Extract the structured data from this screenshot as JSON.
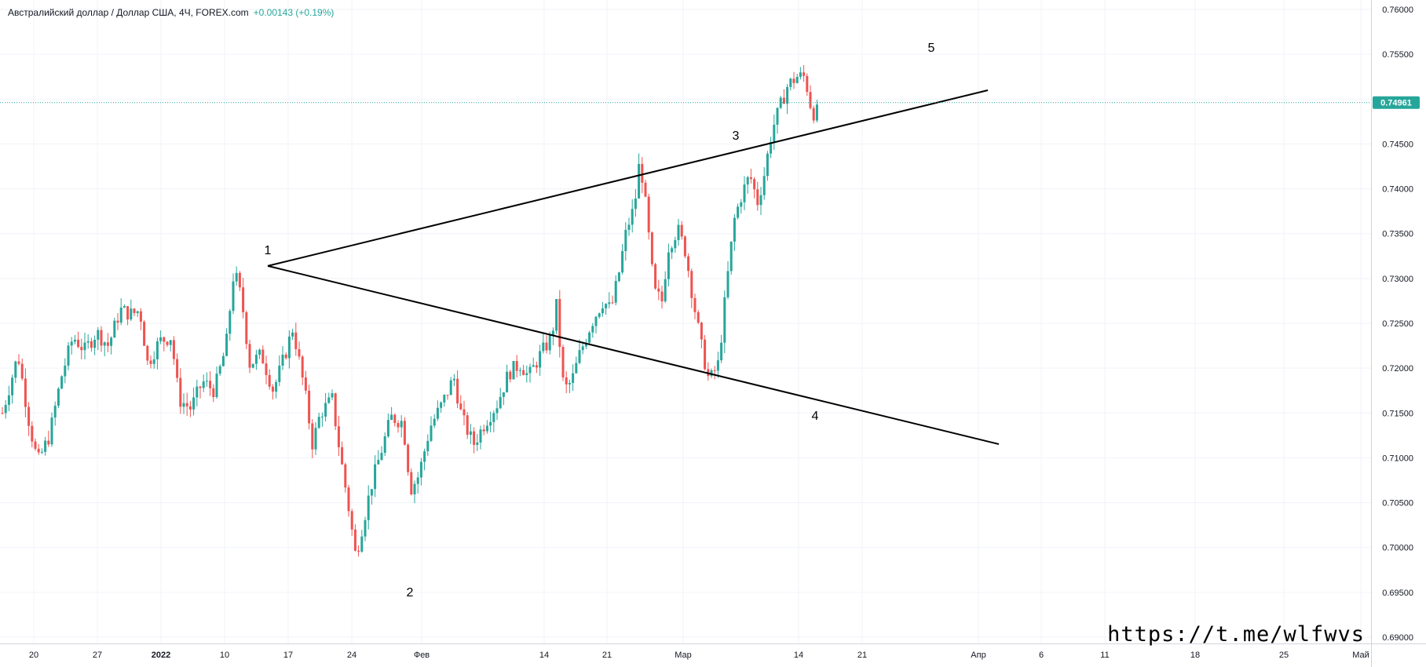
{
  "legend": {
    "symbol": "Австралийский доллар / Доллар США, 4Ч, FOREX.com",
    "change": "+0.00143 (+0.19%)"
  },
  "watermark": "https://t.me/wlfwvs",
  "colors": {
    "up": "#26a69a",
    "down": "#ef5350",
    "grid": "#f0f3fa",
    "line": "#000000",
    "last_price": "#26a69a"
  },
  "chart_data": {
    "type": "candlestick",
    "title": "Австралийский доллар / Доллар США, 4Ч, FOREX.com",
    "ylim": [
      0.69,
      0.76
    ],
    "y_ticks": [
      "0.76000",
      "0.75500",
      "0.75000",
      "0.74500",
      "0.74000",
      "0.73500",
      "0.73000",
      "0.72500",
      "0.72000",
      "0.71500",
      "0.71000",
      "0.70500",
      "0.70000",
      "0.69500",
      "0.69000"
    ],
    "x_ticks": [
      "20",
      "27",
      "2022",
      "10",
      "17",
      "24",
      "Фев",
      "14",
      "21",
      "Мар",
      "14",
      "21",
      "Апр",
      "6",
      "11",
      "18",
      "25",
      "Май"
    ],
    "x_tick_bold": [
      "2022"
    ],
    "last_price": 0.74961,
    "last_price_label": "0.74961",
    "close_path": [
      [
        0,
        0.715
      ],
      [
        20,
        0.7215
      ],
      [
        35,
        0.7135
      ],
      [
        45,
        0.7095
      ],
      [
        60,
        0.7125
      ],
      [
        75,
        0.719
      ],
      [
        90,
        0.7235
      ],
      [
        105,
        0.722
      ],
      [
        120,
        0.724
      ],
      [
        135,
        0.7225
      ],
      [
        150,
        0.7265
      ],
      [
        165,
        0.726
      ],
      [
        175,
        0.7265
      ],
      [
        185,
        0.7205
      ],
      [
        200,
        0.723
      ],
      [
        215,
        0.7235
      ],
      [
        225,
        0.7165
      ],
      [
        240,
        0.7155
      ],
      [
        255,
        0.7185
      ],
      [
        270,
        0.7175
      ],
      [
        285,
        0.7225
      ],
      [
        295,
        0.731
      ],
      [
        305,
        0.7275
      ],
      [
        315,
        0.7205
      ],
      [
        330,
        0.7215
      ],
      [
        345,
        0.7175
      ],
      [
        360,
        0.7215
      ],
      [
        370,
        0.7245
      ],
      [
        385,
        0.7175
      ],
      [
        395,
        0.7115
      ],
      [
        405,
        0.715
      ],
      [
        420,
        0.7165
      ],
      [
        430,
        0.7105
      ],
      [
        440,
        0.705
      ],
      [
        450,
        0.699
      ],
      [
        460,
        0.703
      ],
      [
        470,
        0.707
      ],
      [
        480,
        0.71
      ],
      [
        495,
        0.7145
      ],
      [
        510,
        0.714
      ],
      [
        520,
        0.7065
      ],
      [
        530,
        0.708
      ],
      [
        545,
        0.7135
      ],
      [
        560,
        0.716
      ],
      [
        575,
        0.719
      ],
      [
        585,
        0.7145
      ],
      [
        600,
        0.7115
      ],
      [
        615,
        0.714
      ],
      [
        630,
        0.716
      ],
      [
        645,
        0.7195
      ],
      [
        660,
        0.7205
      ],
      [
        670,
        0.719
      ],
      [
        685,
        0.7215
      ],
      [
        700,
        0.7235
      ],
      [
        705,
        0.7275
      ],
      [
        715,
        0.7175
      ],
      [
        725,
        0.7185
      ],
      [
        735,
        0.7215
      ],
      [
        750,
        0.725
      ],
      [
        765,
        0.7275
      ],
      [
        775,
        0.7265
      ],
      [
        785,
        0.7305
      ],
      [
        795,
        0.7355
      ],
      [
        805,
        0.738
      ],
      [
        812,
        0.7435
      ],
      [
        820,
        0.7375
      ],
      [
        830,
        0.7285
      ],
      [
        840,
        0.7275
      ],
      [
        848,
        0.7335
      ],
      [
        860,
        0.7355
      ],
      [
        870,
        0.733
      ],
      [
        880,
        0.7275
      ],
      [
        890,
        0.7225
      ],
      [
        900,
        0.7185
      ],
      [
        912,
        0.7205
      ],
      [
        922,
        0.729
      ],
      [
        932,
        0.7365
      ],
      [
        942,
        0.7395
      ],
      [
        952,
        0.7415
      ],
      [
        962,
        0.7385
      ],
      [
        970,
        0.7415
      ],
      [
        980,
        0.7465
      ],
      [
        990,
        0.749
      ],
      [
        1000,
        0.7515
      ],
      [
        1012,
        0.7525
      ],
      [
        1022,
        0.7525
      ],
      [
        1030,
        0.749
      ],
      [
        1036,
        0.748
      ],
      [
        1040,
        0.7496
      ]
    ],
    "wave_points": [
      {
        "label": "1",
        "price": 0.7314
      },
      {
        "label": "2",
        "price": 0.6968
      },
      {
        "label": "3",
        "price": 0.7442
      },
      {
        "label": "4",
        "price": 0.7168
      },
      {
        "label": "5",
        "price": 0.7536
      }
    ]
  }
}
